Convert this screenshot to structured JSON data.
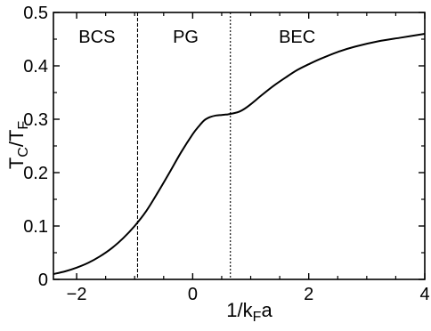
{
  "chart_data": {
    "type": "line",
    "title": "",
    "xlabel_parts": [
      "1/k",
      "F",
      "a"
    ],
    "ylabel_parts": [
      "T",
      "C",
      "/T",
      "F"
    ],
    "xlim": [
      -2.4,
      4
    ],
    "ylim": [
      0,
      0.5
    ],
    "grid": false,
    "legend": "none",
    "x_ticks": [
      -2,
      0,
      2,
      4
    ],
    "x_tick_labels": [
      "−2",
      "0",
      "2",
      "4"
    ],
    "y_ticks": [
      0,
      0.1,
      0.2,
      0.3,
      0.4,
      0.5
    ],
    "y_tick_labels": [
      "0",
      "0.1",
      "0.2",
      "0.3",
      "0.4",
      "0.5"
    ],
    "series": [
      {
        "x": [
          -2.4,
          -2.2,
          -2.0,
          -1.8,
          -1.6,
          -1.4,
          -1.2,
          -1.0,
          -0.8,
          -0.6,
          -0.4,
          -0.2,
          0.0,
          0.1,
          0.2,
          0.3,
          0.4,
          0.5,
          0.6,
          0.7,
          0.8,
          0.9,
          1.0,
          1.2,
          1.4,
          1.6,
          1.8,
          2.0,
          2.2,
          2.5,
          2.8,
          3.2,
          3.6,
          4.0
        ],
        "y": [
          0.01,
          0.015,
          0.022,
          0.031,
          0.043,
          0.058,
          0.077,
          0.1,
          0.128,
          0.163,
          0.2,
          0.238,
          0.272,
          0.286,
          0.298,
          0.304,
          0.307,
          0.308,
          0.309,
          0.311,
          0.314,
          0.32,
          0.328,
          0.346,
          0.363,
          0.378,
          0.392,
          0.403,
          0.413,
          0.426,
          0.436,
          0.446,
          0.453,
          0.46
        ]
      }
    ],
    "dividers": [
      -0.95,
      0.65
    ],
    "regions": [
      {
        "label": "BCS",
        "x": -1.65,
        "y": 0.455
      },
      {
        "label": "PG",
        "x": -0.12,
        "y": 0.455
      },
      {
        "label": "BEC",
        "x": 1.8,
        "y": 0.455
      }
    ],
    "colors": {
      "line": "#000000",
      "axes": "#000000",
      "background": "#ffffff"
    }
  }
}
